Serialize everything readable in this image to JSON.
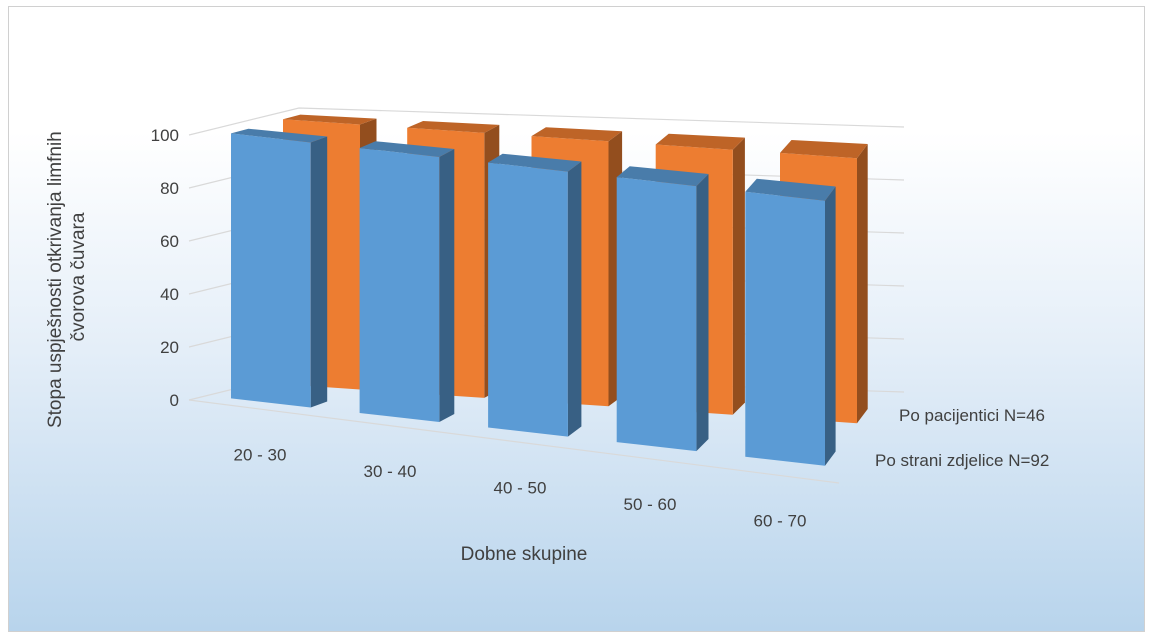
{
  "chart_data": {
    "type": "bar",
    "subtype": "3d-clustered-column",
    "title": "",
    "xlabel": "Dobne skupine",
    "ylabel": "Stopa uspješnosti otkrivanja limfnih čvorova čuvara",
    "ylabel_lines": [
      "Stopa uspješnosti otkrivanja limfnih",
      "čvorova čuvara"
    ],
    "categories": [
      "20 - 30",
      "30 - 40",
      "40 - 50",
      "50 - 60",
      "60 - 70"
    ],
    "yticks": [
      "0",
      "20",
      "40",
      "60",
      "80",
      "100"
    ],
    "ylim": [
      0,
      100
    ],
    "grid": true,
    "legend_position": "right",
    "series": [
      {
        "name": "Po strani zdjelice N=92",
        "color": "#5b9bd5",
        "values": [
          100,
          100,
          100,
          100,
          100
        ]
      },
      {
        "name": "Po pacijentici N=46",
        "color": "#ed7d31",
        "values": [
          100,
          100,
          100,
          100,
          100
        ]
      }
    ]
  }
}
